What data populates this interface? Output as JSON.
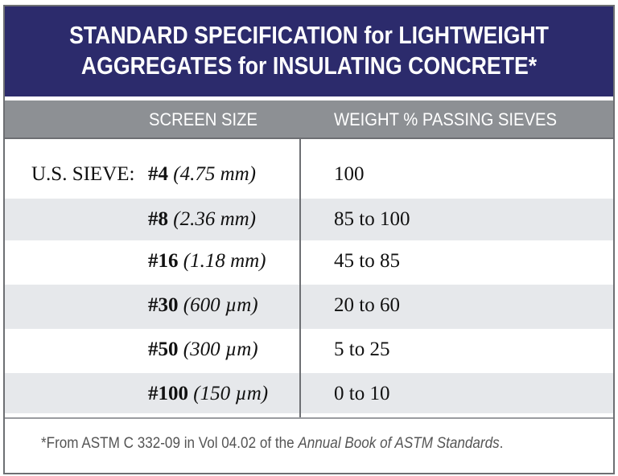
{
  "header": {
    "title_lines": [
      "STANDARD SPECIFICATION for LIGHTWEIGHT",
      "AGGREGATES for INSULATING CONCRETE*"
    ]
  },
  "table": {
    "columns": [
      "SCREEN SIZE",
      "WEIGHT % PASSING SIEVES"
    ],
    "row_label": "U.S. SIEVE:",
    "rows": [
      [
        "#4",
        "(4.75 mm)",
        "100"
      ],
      [
        "#8",
        "(2.36 mm)",
        "85 to 100"
      ],
      [
        "#16",
        "(1.18 mm)",
        "45 to 85"
      ],
      [
        "#30",
        "(600 µm)",
        "20 to 60"
      ],
      [
        "#50",
        "(300 µm)",
        "5 to 25"
      ],
      [
        "#100",
        "(150 µm)",
        "0 to 10"
      ]
    ]
  },
  "footnote": {
    "text": "*From ASTM C 332-09 in Vol 04.02 of the ",
    "italic": "Annual Book of ASTM Standards",
    "end": "."
  }
}
